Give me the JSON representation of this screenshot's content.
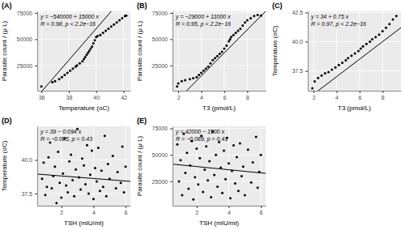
{
  "chart_data": [
    {
      "type": "scatter",
      "title": "(A)",
      "x_label": "Temperature (oC)",
      "y_label": "Parasite count / (μ L)",
      "annotations": [
        "y = −540000 + 15000 x",
        "R = 0.98, p < 2.2e−16"
      ],
      "x": [
        36.0,
        36.8,
        37.0,
        37.3,
        37.5,
        37.7,
        37.9,
        38.1,
        38.3,
        38.5,
        38.6,
        38.8,
        39.0,
        39.1,
        39.2,
        39.3,
        39.4,
        39.5,
        39.6,
        39.7,
        39.8,
        39.9,
        40.0,
        40.1,
        40.3,
        40.5,
        40.7,
        40.9,
        41.1,
        41.3,
        41.5,
        41.7,
        41.9,
        42.1,
        42.2
      ],
      "values": [
        5000,
        9000,
        10000,
        12000,
        14000,
        16000,
        18000,
        20000,
        22000,
        24000,
        25000,
        27000,
        29000,
        31000,
        33000,
        35000,
        37000,
        39000,
        41000,
        43000,
        46000,
        49000,
        52000,
        53000,
        54000,
        56000,
        58000,
        60000,
        62000,
        64000,
        66000,
        68000,
        70000,
        72000,
        72500
      ],
      "fit": {
        "intercept": -540000,
        "slope": 15000
      },
      "color": "#000000",
      "grid": true,
      "xlim": [
        35.7,
        42.5
      ],
      "xticks": [
        36,
        38,
        40,
        42
      ],
      "ylim": [
        1000,
        76500
      ],
      "yticks": [
        25000,
        50000,
        75000
      ]
    },
    {
      "type": "scatter",
      "title": "(B)",
      "x_label": "T3 (pmol/L)",
      "y_label": "Parasite count / (μ L)",
      "annotations": [
        "y = −29000 + 11000 x",
        "R = 0.95, p < 2.2e−16"
      ],
      "x": [
        1.9,
        2.0,
        2.3,
        2.6,
        3.0,
        3.3,
        3.6,
        3.8,
        4.0,
        4.2,
        4.4,
        4.6,
        4.8,
        5.0,
        5.2,
        5.4,
        5.6,
        5.8,
        6.0,
        6.2,
        6.4,
        6.5,
        6.6,
        6.8,
        7.0,
        7.2,
        7.4,
        7.6,
        7.8,
        8.0,
        8.3,
        8.6,
        8.9,
        9.2
      ],
      "values": [
        5000,
        8000,
        10000,
        11000,
        12000,
        13000,
        14000,
        16000,
        18000,
        20000,
        22000,
        24000,
        27000,
        30000,
        32000,
        34000,
        36000,
        38000,
        41000,
        44000,
        48000,
        50000,
        52000,
        54000,
        56000,
        58000,
        60000,
        63000,
        66000,
        68000,
        70000,
        72000,
        73000,
        72500
      ],
      "fit": {
        "intercept": -29000,
        "slope": 11000
      },
      "color": "#000000",
      "grid": true,
      "xlim": [
        1.5,
        9.6
      ],
      "xticks": [
        2,
        4,
        6,
        8
      ],
      "ylim": [
        1000,
        76500
      ],
      "yticks": [
        25000,
        50000,
        75000
      ]
    },
    {
      "type": "scatter",
      "title": "(C)",
      "x_label": "T3 (pmol/L)",
      "y_label": "Temperature (oC)",
      "annotations": [
        "y = 34 + 0.75 x",
        "R = 0.97, p < 2.2e−16"
      ],
      "x": [
        1.9,
        2.1,
        2.4,
        2.7,
        3.0,
        3.3,
        3.6,
        3.9,
        4.2,
        4.5,
        4.8,
        5.0,
        5.3,
        5.6,
        5.9,
        6.1,
        6.3,
        6.6,
        6.9,
        7.1,
        7.4,
        7.7,
        8.0,
        8.3,
        8.6,
        8.9,
        9.2
      ],
      "values": [
        36.0,
        36.6,
        36.9,
        37.1,
        37.3,
        37.4,
        37.6,
        37.8,
        38.0,
        38.2,
        38.4,
        38.6,
        38.8,
        39.0,
        39.2,
        39.4,
        39.6,
        39.8,
        40.0,
        40.2,
        40.4,
        40.6,
        40.9,
        41.2,
        41.5,
        41.9,
        42.2
      ],
      "fit": {
        "intercept": 34,
        "slope": 0.75
      },
      "color": "#000000",
      "grid": true,
      "xlim": [
        1.5,
        9.6
      ],
      "xticks": [
        2,
        4,
        6,
        8
      ],
      "ylim": [
        35.8,
        42.6
      ],
      "yticks": [
        37.5,
        {
          "value": 40,
          "label": "40.0"
        },
        42.5
      ]
    },
    {
      "type": "scatter",
      "title": "(D)",
      "x_label": "TSH (mIU/ml)",
      "y_label": "Temperature (oC)",
      "annotations": [
        "y = 39 − 0.094 x",
        "R = −0.085, p = 0.43"
      ],
      "x": [
        0.8,
        0.9,
        1.0,
        1.1,
        1.2,
        1.3,
        1.4,
        1.5,
        1.6,
        1.7,
        1.8,
        1.9,
        2.0,
        2.1,
        2.2,
        2.3,
        2.4,
        2.5,
        2.6,
        2.7,
        2.8,
        2.9,
        3.0,
        3.1,
        3.2,
        3.3,
        3.4,
        3.5,
        3.6,
        3.7,
        3.8,
        3.9,
        4.0,
        4.1,
        4.2,
        4.3,
        4.4,
        4.5,
        4.6,
        4.7,
        4.8,
        4.9,
        5.0,
        5.2,
        5.4,
        5.5,
        5.7,
        5.8,
        5.9,
        6.0
      ],
      "values": [
        38.6,
        39.8,
        37.4,
        38.0,
        40.2,
        41.3,
        37.9,
        38.8,
        39.5,
        36.8,
        40.6,
        38.3,
        37.2,
        39.0,
        41.6,
        38.1,
        37.6,
        39.9,
        40.4,
        38.5,
        37.3,
        39.3,
        42.3,
        38.7,
        37.8,
        40.1,
        39.6,
        38.2,
        41.1,
        37.5,
        38.9,
        40.7,
        37.1,
        39.4,
        38.4,
        40.9,
        37.7,
        39.2,
        38.0,
        41.8,
        37.3,
        39.7,
        38.6,
        40.3,
        37.9,
        39.1,
        38.3,
        41.0,
        37.6,
        39.5
      ],
      "fit": {
        "intercept": 39,
        "slope": -0.094
      },
      "color": "#000000",
      "grid": true,
      "xlim": [
        0.5,
        6.3
      ],
      "xticks": [
        2,
        4,
        6
      ],
      "ylim": [
        36.6,
        42.5
      ],
      "yticks": [
        37.5,
        {
          "value": 40,
          "label": "40.0"
        }
      ]
    },
    {
      "type": "scatter",
      "title": "(E)",
      "x_label": "TSH (mIU/ml)",
      "y_label": "Parasite count / (μ L)",
      "annotations": [
        "y = 42000 − 1500 x",
        "R = −0.089, p = 0.41"
      ],
      "x": [
        0.8,
        0.9,
        1.0,
        1.1,
        1.2,
        1.3,
        1.4,
        1.5,
        1.6,
        1.7,
        1.8,
        1.9,
        2.0,
        2.1,
        2.2,
        2.3,
        2.4,
        2.5,
        2.6,
        2.7,
        2.8,
        2.9,
        3.0,
        3.1,
        3.2,
        3.3,
        3.4,
        3.5,
        3.6,
        3.7,
        3.8,
        3.9,
        4.0,
        4.1,
        4.2,
        4.3,
        4.4,
        4.5,
        4.6,
        4.7,
        4.8,
        4.9,
        5.0,
        5.2,
        5.4,
        5.5,
        5.7,
        5.8,
        5.9,
        6.0
      ],
      "values": [
        60000,
        25000,
        45000,
        12000,
        70000,
        33000,
        52000,
        18000,
        40000,
        63000,
        8000,
        29000,
        56000,
        22000,
        47000,
        68000,
        15000,
        36000,
        58000,
        26000,
        44000,
        10000,
        72000,
        31000,
        50000,
        20000,
        62000,
        38000,
        14000,
        54000,
        27000,
        66000,
        42000,
        9000,
        35000,
        59000,
        23000,
        48000,
        16000,
        61000,
        30000,
        39000,
        12000,
        55000,
        24000,
        43000,
        67000,
        19000,
        34000,
        50000
      ],
      "fit": {
        "intercept": 42000,
        "slope": -1500
      },
      "color": "#000000",
      "grid": true,
      "xlim": [
        0.5,
        6.3
      ],
      "xticks": [
        2,
        4,
        6
      ],
      "ylim": [
        2000,
        77000
      ],
      "yticks": [
        25000,
        50000,
        75000
      ]
    }
  ]
}
